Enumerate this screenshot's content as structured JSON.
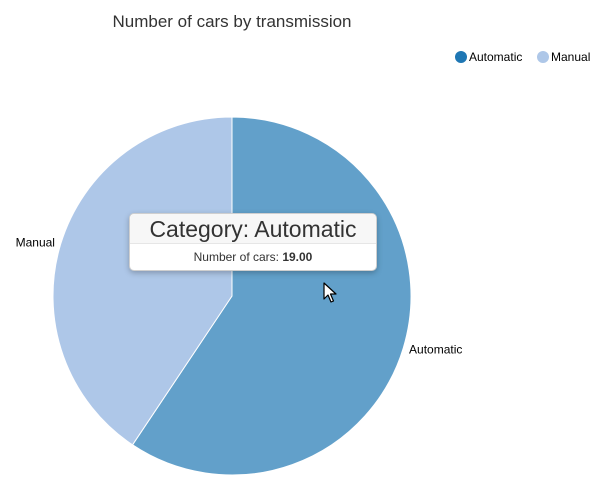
{
  "chart_data": {
    "type": "pie",
    "title": "Number of cars by transmission",
    "categories": [
      "Automatic",
      "Manual"
    ],
    "values": [
      19,
      13
    ],
    "colors": [
      "#62a0ca",
      "#aec7e8"
    ],
    "legend": {
      "placement": "top-right",
      "items": [
        {
          "label": "Automatic",
          "color": "#1f77b4"
        },
        {
          "label": "Manual",
          "color": "#aec7e8"
        }
      ]
    }
  },
  "tooltip": {
    "header": "Category: Automatic",
    "metric_label": "Number of cars:",
    "metric_value": "19.00"
  },
  "cursor_icon": "arrow-pointer-icon"
}
